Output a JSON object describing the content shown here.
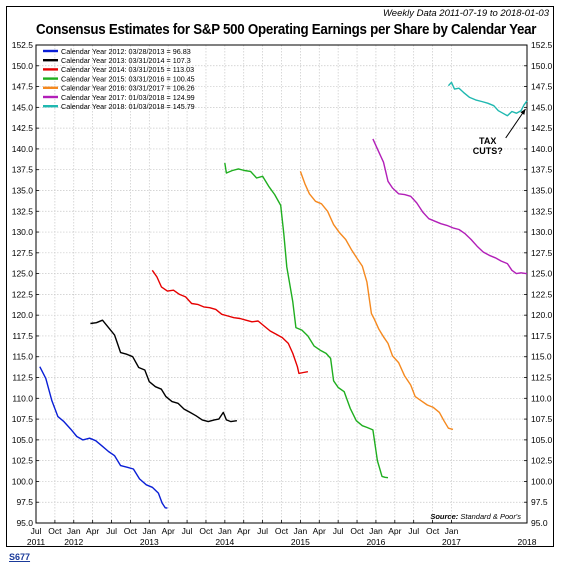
{
  "header": {
    "weekly_note": "Weekly Data 2011-07-19 to 2018-01-03",
    "title": "Consensus Estimates for S&P 500 Operating Earnings per Share by Calendar Year"
  },
  "footer": {
    "code": "S677"
  },
  "chart_data": {
    "type": "line",
    "title": "Consensus Estimates for S&P 500 Operating Earnings per Share by Calendar Year",
    "xlabel": "",
    "ylabel": "",
    "ylim": [
      95.0,
      152.5
    ],
    "xlim": [
      "2011-07",
      "2018-01"
    ],
    "y_ticks": [
      "95.0",
      "97.5",
      "100.0",
      "102.5",
      "105.0",
      "107.5",
      "110.0",
      "112.5",
      "115.0",
      "117.5",
      "120.0",
      "122.5",
      "125.0",
      "127.5",
      "130.0",
      "132.5",
      "135.0",
      "137.5",
      "140.0",
      "142.5",
      "145.0",
      "147.5",
      "150.0",
      "152.5"
    ],
    "x_tick_labels": [
      "Jul",
      "Oct",
      "Jan",
      "Apr",
      "Jul",
      "Oct",
      "Jan",
      "Apr",
      "Jul",
      "Oct",
      "Jan",
      "Apr",
      "Jul",
      "Oct",
      "Jan",
      "Apr",
      "Jul",
      "Oct",
      "Jan",
      "Apr",
      "Jul",
      "Oct",
      "Jan"
    ],
    "x_year_labels": [
      {
        "label": "2011",
        "at": 2011.5
      },
      {
        "label": "2012",
        "at": 2012.0
      },
      {
        "label": "2013",
        "at": 2013.0
      },
      {
        "label": "2014",
        "at": 2014.0
      },
      {
        "label": "2015",
        "at": 2015.0
      },
      {
        "label": "2016",
        "at": 2016.0
      },
      {
        "label": "2017",
        "at": 2017.0
      },
      {
        "label": "2018",
        "at": 2018.0
      }
    ],
    "grid": true,
    "legend_position": "top-left",
    "series": [
      {
        "name": "Calendar Year 2012: 03/28/2013 = 96.83",
        "color": "#0a1fd6",
        "points": [
          [
            2011.55,
            113.8
          ],
          [
            2011.63,
            112.4
          ],
          [
            2011.71,
            109.7
          ],
          [
            2011.79,
            107.8
          ],
          [
            2011.87,
            107.2
          ],
          [
            2011.96,
            106.3
          ],
          [
            2012.04,
            105.4
          ],
          [
            2012.12,
            105.0
          ],
          [
            2012.21,
            105.2
          ],
          [
            2012.29,
            104.9
          ],
          [
            2012.37,
            104.3
          ],
          [
            2012.46,
            103.6
          ],
          [
            2012.54,
            103.1
          ],
          [
            2012.62,
            101.9
          ],
          [
            2012.71,
            101.7
          ],
          [
            2012.79,
            101.5
          ],
          [
            2012.87,
            100.3
          ],
          [
            2012.96,
            99.6
          ],
          [
            2013.04,
            99.3
          ],
          [
            2013.12,
            98.6
          ],
          [
            2013.17,
            97.4
          ],
          [
            2013.21,
            96.83
          ],
          [
            2013.24,
            96.8
          ]
        ]
      },
      {
        "name": "Calendar Year 2013: 03/31/2014 = 107.3",
        "color": "#000000",
        "points": [
          [
            2012.22,
            119.0
          ],
          [
            2012.3,
            119.1
          ],
          [
            2012.38,
            119.4
          ],
          [
            2012.46,
            118.5
          ],
          [
            2012.54,
            117.6
          ],
          [
            2012.62,
            115.5
          ],
          [
            2012.7,
            115.3
          ],
          [
            2012.78,
            115.0
          ],
          [
            2012.86,
            113.7
          ],
          [
            2012.94,
            113.4
          ],
          [
            2013.0,
            112.0
          ],
          [
            2013.08,
            111.4
          ],
          [
            2013.16,
            111.1
          ],
          [
            2013.22,
            110.2
          ],
          [
            2013.3,
            109.6
          ],
          [
            2013.38,
            109.4
          ],
          [
            2013.46,
            108.7
          ],
          [
            2013.54,
            108.3
          ],
          [
            2013.62,
            107.9
          ],
          [
            2013.7,
            107.4
          ],
          [
            2013.78,
            107.2
          ],
          [
            2013.86,
            107.4
          ],
          [
            2013.92,
            107.5
          ],
          [
            2013.98,
            108.3
          ],
          [
            2014.02,
            107.4
          ],
          [
            2014.08,
            107.2
          ],
          [
            2014.16,
            107.3
          ]
        ]
      },
      {
        "name": "Calendar Year 2014: 03/31/2015 = 113.03",
        "color": "#e60000",
        "points": [
          [
            2013.04,
            125.4
          ],
          [
            2013.1,
            124.6
          ],
          [
            2013.16,
            123.4
          ],
          [
            2013.24,
            122.9
          ],
          [
            2013.32,
            123.0
          ],
          [
            2013.4,
            122.5
          ],
          [
            2013.48,
            122.2
          ],
          [
            2013.56,
            121.4
          ],
          [
            2013.64,
            121.3
          ],
          [
            2013.72,
            121.0
          ],
          [
            2013.8,
            120.9
          ],
          [
            2013.88,
            120.7
          ],
          [
            2013.96,
            120.1
          ],
          [
            2014.04,
            119.9
          ],
          [
            2014.12,
            119.7
          ],
          [
            2014.2,
            119.6
          ],
          [
            2014.28,
            119.4
          ],
          [
            2014.36,
            119.2
          ],
          [
            2014.44,
            119.3
          ],
          [
            2014.52,
            118.7
          ],
          [
            2014.6,
            118.1
          ],
          [
            2014.68,
            117.7
          ],
          [
            2014.76,
            117.3
          ],
          [
            2014.84,
            116.6
          ],
          [
            2014.9,
            115.4
          ],
          [
            2014.96,
            113.8
          ],
          [
            2014.98,
            113.0
          ],
          [
            2015.04,
            113.1
          ],
          [
            2015.1,
            113.2
          ]
        ]
      },
      {
        "name": "Calendar Year 2015: 03/31/2016 = 100.45",
        "color": "#1fae1f",
        "points": [
          [
            2014.0,
            138.3
          ],
          [
            2014.02,
            137.1
          ],
          [
            2014.1,
            137.4
          ],
          [
            2014.18,
            137.6
          ],
          [
            2014.26,
            137.4
          ],
          [
            2014.34,
            137.3
          ],
          [
            2014.42,
            136.5
          ],
          [
            2014.5,
            136.7
          ],
          [
            2014.58,
            135.5
          ],
          [
            2014.66,
            134.5
          ],
          [
            2014.74,
            133.2
          ],
          [
            2014.78,
            129.8
          ],
          [
            2014.82,
            125.8
          ],
          [
            2014.86,
            123.7
          ],
          [
            2014.9,
            121.6
          ],
          [
            2014.94,
            118.5
          ],
          [
            2015.02,
            118.2
          ],
          [
            2015.1,
            117.5
          ],
          [
            2015.18,
            116.3
          ],
          [
            2015.26,
            115.8
          ],
          [
            2015.34,
            115.4
          ],
          [
            2015.4,
            114.8
          ],
          [
            2015.44,
            112.1
          ],
          [
            2015.5,
            111.3
          ],
          [
            2015.58,
            110.8
          ],
          [
            2015.66,
            108.8
          ],
          [
            2015.74,
            107.3
          ],
          [
            2015.82,
            106.7
          ],
          [
            2015.88,
            106.5
          ],
          [
            2015.96,
            106.2
          ],
          [
            2016.02,
            102.5
          ],
          [
            2016.08,
            100.6
          ],
          [
            2016.12,
            100.5
          ],
          [
            2016.16,
            100.45
          ]
        ]
      },
      {
        "name": "Calendar Year 2016: 03/31/2017 = 106.26",
        "color": "#f5891f",
        "points": [
          [
            2015.0,
            137.3
          ],
          [
            2015.06,
            135.8
          ],
          [
            2015.12,
            134.6
          ],
          [
            2015.2,
            133.7
          ],
          [
            2015.28,
            133.4
          ],
          [
            2015.36,
            132.5
          ],
          [
            2015.44,
            130.9
          ],
          [
            2015.52,
            129.9
          ],
          [
            2015.6,
            129.1
          ],
          [
            2015.68,
            127.8
          ],
          [
            2015.76,
            126.7
          ],
          [
            2015.82,
            125.9
          ],
          [
            2015.88,
            124.0
          ],
          [
            2015.94,
            120.2
          ],
          [
            2015.98,
            119.5
          ],
          [
            2016.04,
            118.3
          ],
          [
            2016.1,
            117.4
          ],
          [
            2016.16,
            116.6
          ],
          [
            2016.22,
            115.1
          ],
          [
            2016.3,
            114.3
          ],
          [
            2016.38,
            112.7
          ],
          [
            2016.46,
            111.6
          ],
          [
            2016.52,
            110.2
          ],
          [
            2016.6,
            109.7
          ],
          [
            2016.68,
            109.2
          ],
          [
            2016.76,
            108.9
          ],
          [
            2016.84,
            108.3
          ],
          [
            2016.9,
            107.3
          ],
          [
            2016.96,
            106.4
          ],
          [
            2017.02,
            106.26
          ]
        ]
      },
      {
        "name": "Calendar Year 2017: 01/03/2018 = 124.99",
        "color": "#b21fb8",
        "points": [
          [
            2015.96,
            141.2
          ],
          [
            2016.04,
            139.6
          ],
          [
            2016.1,
            138.4
          ],
          [
            2016.16,
            136.1
          ],
          [
            2016.22,
            135.3
          ],
          [
            2016.3,
            134.6
          ],
          [
            2016.38,
            134.5
          ],
          [
            2016.46,
            134.3
          ],
          [
            2016.54,
            133.5
          ],
          [
            2016.62,
            132.4
          ],
          [
            2016.7,
            131.6
          ],
          [
            2016.78,
            131.3
          ],
          [
            2016.86,
            131.0
          ],
          [
            2016.94,
            130.8
          ],
          [
            2017.02,
            130.5
          ],
          [
            2017.1,
            130.3
          ],
          [
            2017.18,
            129.8
          ],
          [
            2017.26,
            129.1
          ],
          [
            2017.34,
            128.3
          ],
          [
            2017.42,
            127.6
          ],
          [
            2017.5,
            127.2
          ],
          [
            2017.58,
            126.9
          ],
          [
            2017.66,
            126.5
          ],
          [
            2017.74,
            126.2
          ],
          [
            2017.8,
            125.4
          ],
          [
            2017.86,
            125.0
          ],
          [
            2017.92,
            125.1
          ],
          [
            2018.0,
            124.99
          ]
        ]
      },
      {
        "name": "Calendar Year 2018: 01/03/2018 = 145.79",
        "color": "#1fb8b0",
        "points": [
          [
            2016.96,
            147.6
          ],
          [
            2017.0,
            148.0
          ],
          [
            2017.04,
            147.2
          ],
          [
            2017.1,
            147.3
          ],
          [
            2017.16,
            146.8
          ],
          [
            2017.24,
            146.2
          ],
          [
            2017.32,
            145.9
          ],
          [
            2017.4,
            145.7
          ],
          [
            2017.48,
            145.5
          ],
          [
            2017.56,
            145.2
          ],
          [
            2017.62,
            144.6
          ],
          [
            2017.68,
            144.3
          ],
          [
            2017.74,
            144.0
          ],
          [
            2017.8,
            144.5
          ],
          [
            2017.86,
            144.3
          ],
          [
            2017.92,
            144.6
          ],
          [
            2017.96,
            145.3
          ],
          [
            2018.0,
            145.79
          ]
        ]
      }
    ],
    "annotation": {
      "text_line1": "TAX",
      "text_line2": "CUTS?",
      "x": 2017.48,
      "y": 140.6,
      "arrow_to": [
        2017.98,
        144.8
      ]
    },
    "source": {
      "label": "Source:",
      "text": "Standard & Poor's"
    }
  }
}
